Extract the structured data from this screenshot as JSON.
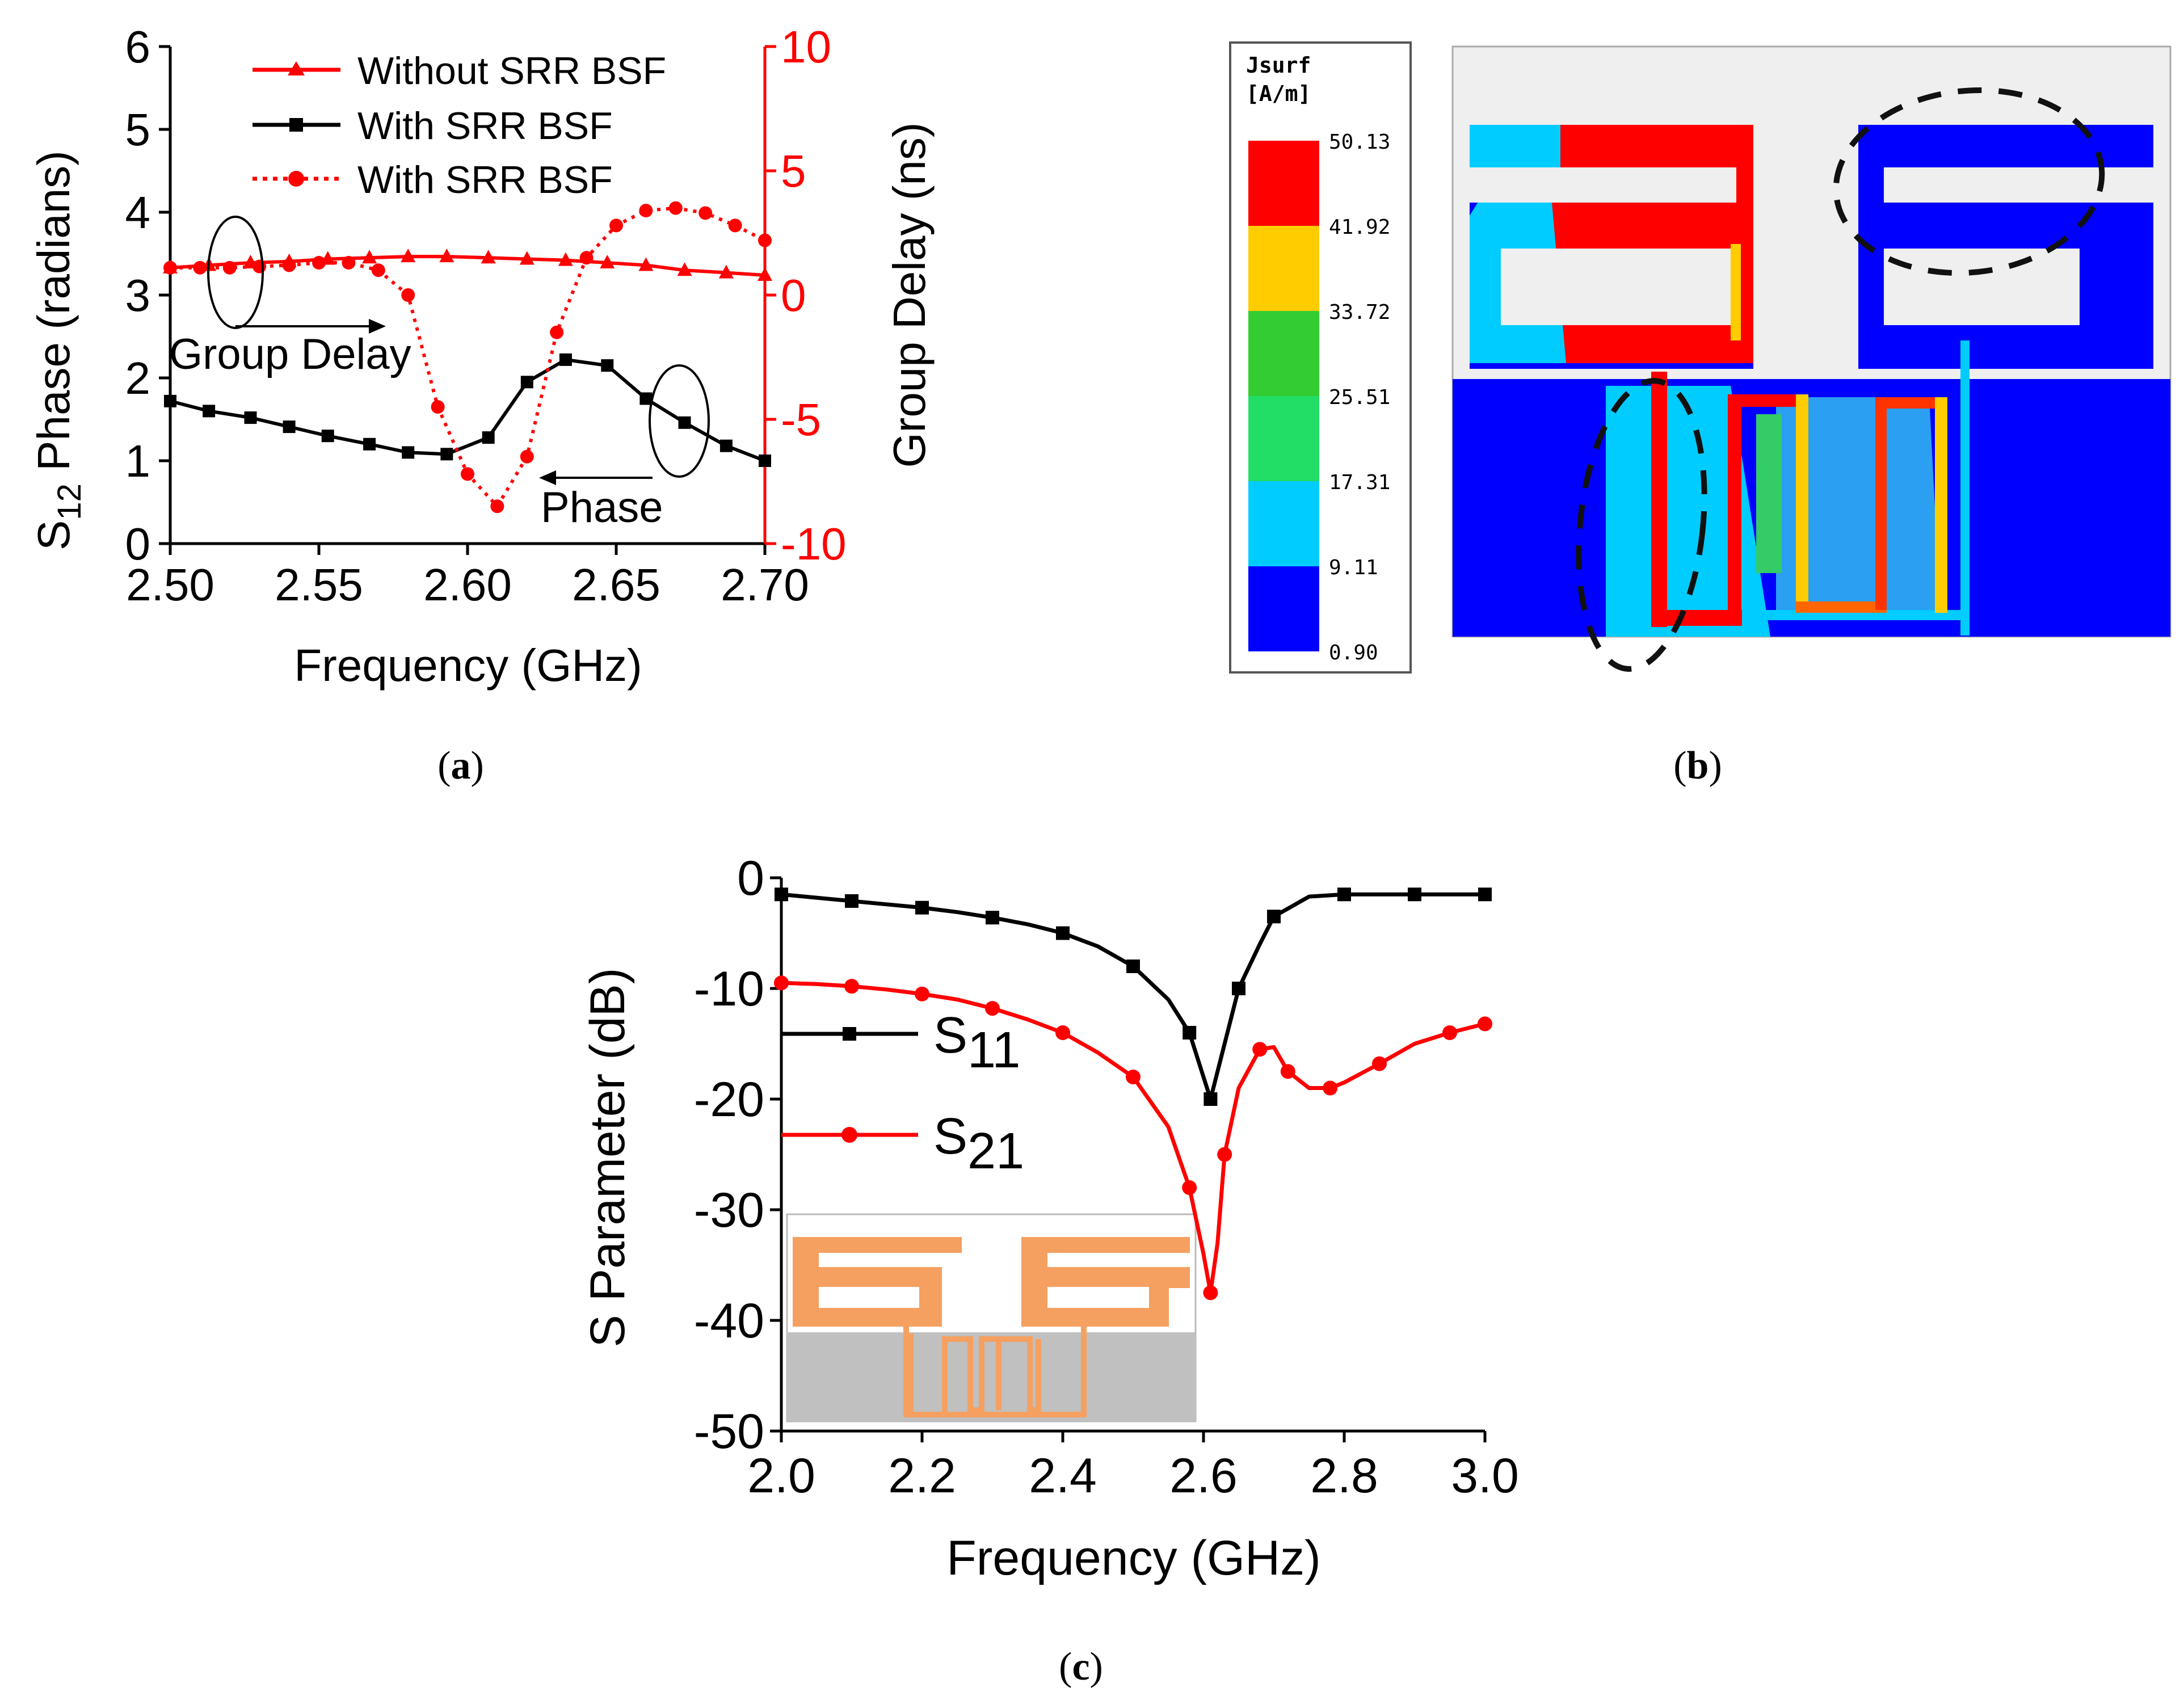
{
  "chart_data": [
    {
      "type": "line",
      "panel_label": "(a)",
      "xlabel": "Frequency (GHz)",
      "ylabel_main": "S",
      "ylabel_sub": "12",
      "ylabel_rest": " Phase (radians)",
      "y2label": "Group Delay (ns)",
      "xlim": [
        2.5,
        2.7
      ],
      "ylim": [
        0,
        6
      ],
      "y2lim": [
        -10,
        10
      ],
      "x_ticks": [
        "2.50",
        "2.55",
        "2.60",
        "2.65",
        "2.70"
      ],
      "y_ticks": [
        "0",
        "1",
        "2",
        "3",
        "4",
        "5",
        "6"
      ],
      "y2_ticks": [
        "-10",
        "-5",
        "0",
        "5",
        "10"
      ],
      "annotations": [
        "Group Delay",
        "Phase"
      ],
      "series": [
        {
          "name": "Without SRR BSF",
          "axis": "right",
          "color": "#ff0000",
          "style": "solid",
          "marker": "triangle",
          "x": [
            2.5,
            2.513,
            2.527,
            2.54,
            2.553,
            2.567,
            2.58,
            2.593,
            2.607,
            2.62,
            2.633,
            2.647,
            2.66,
            2.673,
            2.687,
            2.7
          ],
          "values": [
            1.1,
            1.2,
            1.3,
            1.35,
            1.45,
            1.5,
            1.55,
            1.55,
            1.5,
            1.45,
            1.4,
            1.3,
            1.2,
            1.0,
            0.9,
            0.8
          ]
        },
        {
          "name": "With SRR BSF",
          "axis": "left",
          "color": "#000000",
          "style": "solid",
          "marker": "square",
          "x": [
            2.5,
            2.513,
            2.527,
            2.54,
            2.553,
            2.567,
            2.58,
            2.593,
            2.607,
            2.62,
            2.633,
            2.647,
            2.66,
            2.673,
            2.687,
            2.7
          ],
          "values": [
            1.72,
            1.6,
            1.52,
            1.41,
            1.3,
            1.2,
            1.1,
            1.08,
            1.28,
            1.95,
            2.22,
            2.15,
            1.75,
            1.46,
            1.18,
            1.0
          ]
        },
        {
          "name": "With SRR BSF",
          "axis": "right",
          "color": "#ff0000",
          "style": "dotted",
          "marker": "circle",
          "x": [
            2.5,
            2.51,
            2.52,
            2.53,
            2.54,
            2.55,
            2.56,
            2.57,
            2.58,
            2.59,
            2.6,
            2.61,
            2.62,
            2.63,
            2.64,
            2.65,
            2.66,
            2.67,
            2.68,
            2.69,
            2.7
          ],
          "values": [
            1.1,
            1.1,
            1.1,
            1.15,
            1.2,
            1.3,
            1.3,
            1.0,
            0.0,
            -4.5,
            -7.2,
            -8.5,
            -6.5,
            -1.5,
            1.5,
            2.8,
            3.4,
            3.5,
            3.3,
            2.8,
            2.2
          ]
        }
      ]
    },
    {
      "type": "heatmap",
      "panel_label": "(b)",
      "legend_title_line1": "Jsurf",
      "legend_title_line2": "[A/m]",
      "legend_values": [
        "50.13",
        "41.92",
        "33.72",
        "25.51",
        "17.31",
        "9.11",
        "0.90"
      ],
      "legend_colors": [
        "#ff0000",
        "#ffcc00",
        "#33cc33",
        "#22dd66",
        "#00ccff",
        "#0000ff"
      ]
    },
    {
      "type": "line",
      "panel_label": "(c)",
      "xlabel": "Frequency (GHz)",
      "ylabel": "S Parameter (dB)",
      "xlim": [
        2.0,
        3.0
      ],
      "ylim": [
        -50,
        0
      ],
      "x_ticks": [
        "2.0",
        "2.2",
        "2.4",
        "2.6",
        "2.8",
        "3.0"
      ],
      "y_ticks": [
        "0",
        "-10",
        "-20",
        "-30",
        "-40",
        "-50"
      ],
      "series": [
        {
          "name": "S",
          "sub": "11",
          "color": "#000000",
          "marker": "square",
          "x": [
            2.0,
            2.05,
            2.1,
            2.15,
            2.2,
            2.25,
            2.3,
            2.35,
            2.4,
            2.45,
            2.5,
            2.55,
            2.58,
            2.6,
            2.61,
            2.63,
            2.65,
            2.68,
            2.7,
            2.75,
            2.8,
            2.85,
            2.9,
            2.95,
            3.0
          ],
          "values": [
            -1.5,
            -1.8,
            -2.1,
            -2.4,
            -2.7,
            -3.1,
            -3.6,
            -4.2,
            -5.0,
            -6.2,
            -8.0,
            -11.0,
            -14.0,
            -18.0,
            -20.0,
            -15.0,
            -10.0,
            -6.0,
            -3.5,
            -1.7,
            -1.5,
            -1.5,
            -1.5,
            -1.5,
            -1.5
          ]
        },
        {
          "name": "S",
          "sub": "21",
          "color": "#ff0000",
          "marker": "circle",
          "x": [
            2.0,
            2.05,
            2.1,
            2.15,
            2.2,
            2.25,
            2.3,
            2.35,
            2.4,
            2.45,
            2.5,
            2.55,
            2.58,
            2.6,
            2.61,
            2.62,
            2.63,
            2.65,
            2.68,
            2.7,
            2.72,
            2.75,
            2.78,
            2.8,
            2.85,
            2.9,
            2.95,
            3.0
          ],
          "values": [
            -9.5,
            -9.6,
            -9.8,
            -10.1,
            -10.5,
            -11.0,
            -11.8,
            -12.8,
            -14.0,
            -15.8,
            -18.0,
            -22.5,
            -28.0,
            -34.0,
            -37.5,
            -33.0,
            -25.0,
            -19.0,
            -15.5,
            -15.3,
            -17.5,
            -19.0,
            -19.0,
            -18.5,
            -16.8,
            -15.0,
            -14.0,
            -13.2
          ]
        }
      ],
      "inset": "filter-layout"
    }
  ]
}
